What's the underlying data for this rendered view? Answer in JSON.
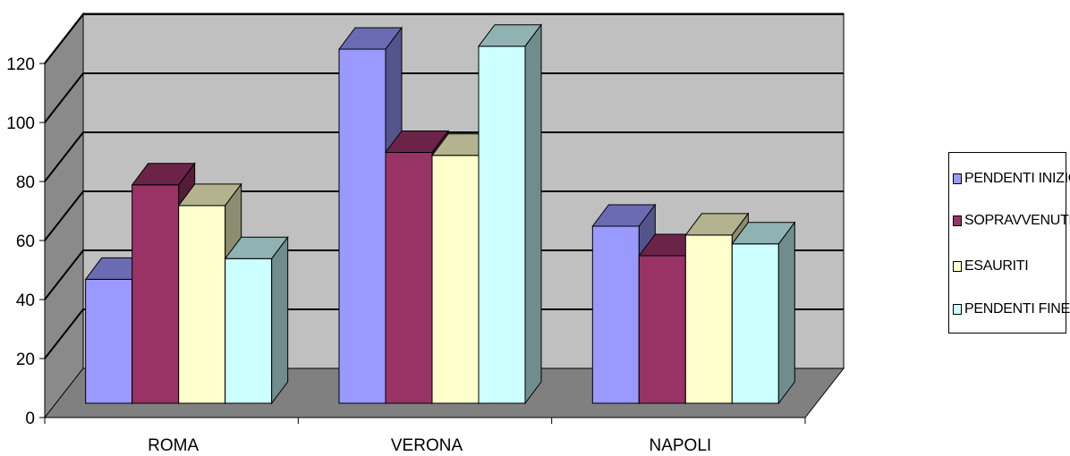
{
  "chart_data": {
    "type": "bar",
    "title": "",
    "xlabel": "",
    "ylabel": "",
    "categories": [
      "ROMA",
      "VERONA",
      "NAPOLI"
    ],
    "series": [
      {
        "name": "PENDENTI INIZIO",
        "values": [
          42,
          120,
          60
        ],
        "color": "#9999ff"
      },
      {
        "name": "SOPRAVVENUTI",
        "values": [
          74,
          85,
          50
        ],
        "color": "#993366"
      },
      {
        "name": "ESAURITI",
        "values": [
          67,
          84,
          57
        ],
        "color": "#ffffcc"
      },
      {
        "name": "PENDENTI FINE",
        "values": [
          49,
          121,
          54
        ],
        "color": "#ccffff"
      }
    ],
    "ylim": [
      0,
      120
    ],
    "yticks": [
      0,
      20,
      40,
      60,
      80,
      100,
      120
    ],
    "grid": true,
    "legend": "right",
    "style": "3d-clustered-column",
    "wall_color": "#c0c0c0",
    "floor_color": "#808080"
  }
}
